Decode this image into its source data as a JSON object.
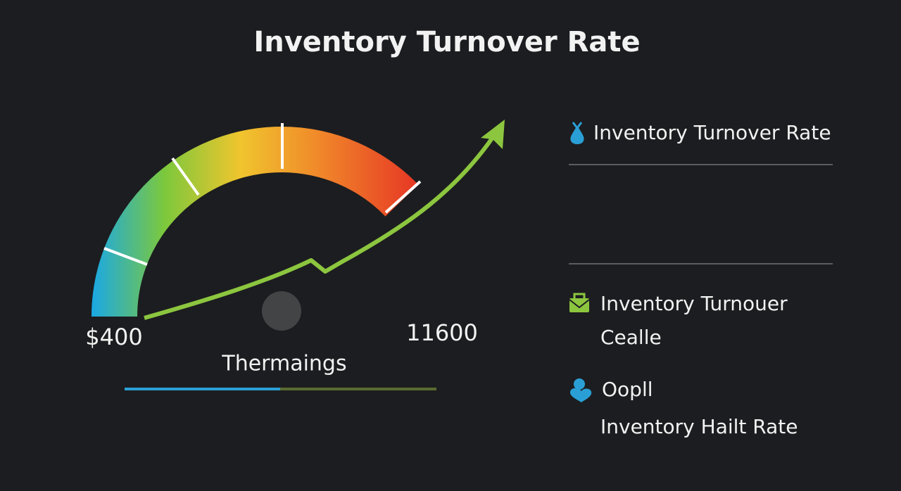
{
  "title": "Inventory Turnover Rate",
  "gauge": {
    "min_label": "$400",
    "max_label": "11600",
    "caption": "Thermaings"
  },
  "legend": {
    "items": [
      {
        "label": "Inventory Turnover Rate"
      },
      {
        "label": "Inventory Turnouer",
        "sublabel": "Cealle"
      },
      {
        "label": "Oopll",
        "sublabel": "Inventory Hailt Rate"
      }
    ]
  }
}
